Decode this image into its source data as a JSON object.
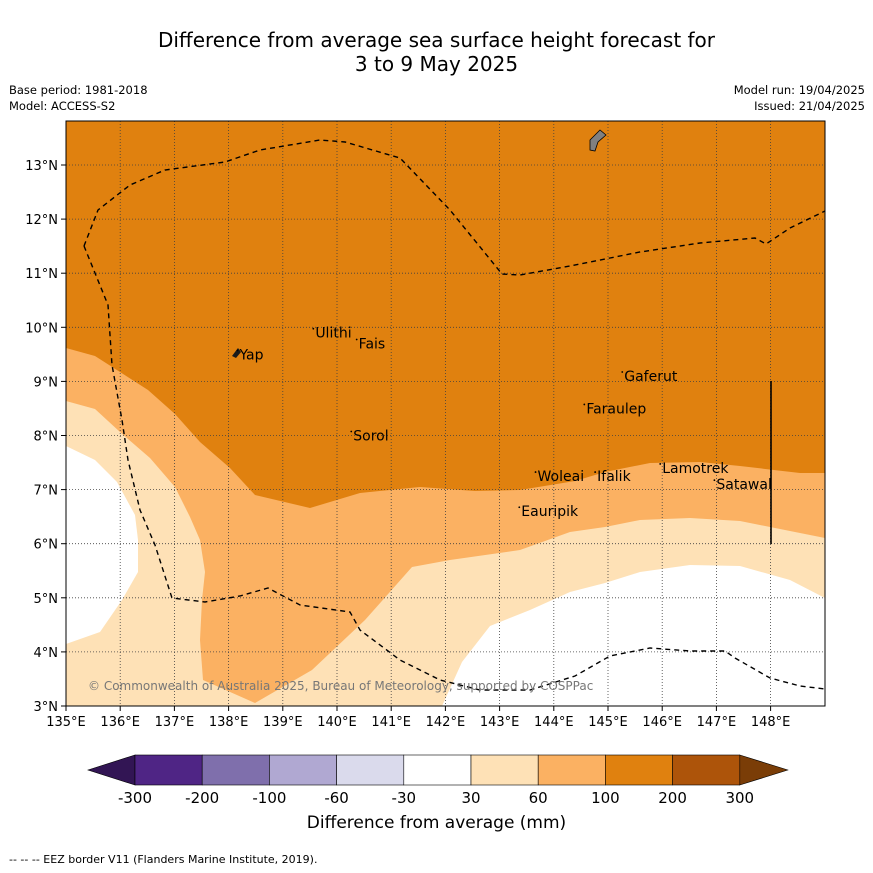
{
  "title": {
    "line1": "Difference from average sea surface height forecast for",
    "line2": "3 to 9 May 2025"
  },
  "meta": {
    "base_period": "Base period: 1981-2018",
    "model": "Model: ACCESS-S2",
    "model_run": "Model run: 19/04/2025",
    "issued": "Issued: 21/04/2025"
  },
  "map": {
    "lon_range": [
      135,
      149
    ],
    "lat_range": [
      3,
      13.8
    ],
    "lon_ticks": [
      "135°E",
      "136°E",
      "137°E",
      "138°E",
      "139°E",
      "140°E",
      "141°E",
      "142°E",
      "143°E",
      "144°E",
      "145°E",
      "146°E",
      "147°E",
      "148°E"
    ],
    "lat_ticks": [
      "3°N",
      "4°N",
      "5°N",
      "6°N",
      "7°N",
      "8°N",
      "9°N",
      "10°N",
      "11°N",
      "12°N",
      "13°N"
    ],
    "copyright": "© Commonwealth of Australia 2025, Bureau of Meteorology, supported by COSPPac",
    "places": [
      {
        "name": "Yap",
        "lon": 138.2,
        "lat": 9.5
      },
      {
        "name": "Ulithi",
        "lon": 139.6,
        "lat": 9.9
      },
      {
        "name": "Fais",
        "lon": 140.4,
        "lat": 9.7
      },
      {
        "name": "Sorol",
        "lon": 140.3,
        "lat": 8.0
      },
      {
        "name": "Gaferut",
        "lon": 145.3,
        "lat": 9.1
      },
      {
        "name": "Faraulep",
        "lon": 144.6,
        "lat": 8.5
      },
      {
        "name": "Woleai",
        "lon": 143.7,
        "lat": 7.25
      },
      {
        "name": "Ifalik",
        "lon": 144.8,
        "lat": 7.25
      },
      {
        "name": "Lamotrek",
        "lon": 146.0,
        "lat": 7.4
      },
      {
        "name": "Satawal",
        "lon": 147.0,
        "lat": 7.1
      },
      {
        "name": "Eauripik",
        "lon": 143.4,
        "lat": 6.6
      }
    ]
  },
  "colorbar": {
    "labels": [
      "-300",
      "-200",
      "-100",
      "-60",
      "-30",
      "30",
      "60",
      "100",
      "200",
      "300"
    ],
    "colors": [
      "#321554",
      "#4f2585",
      "#7f6fac",
      "#b0a8d2",
      "#dadaec",
      "#ffffff",
      "#fee1b6",
      "#fbb162",
      "#e0810f",
      "#ad540a",
      "#7a3d07"
    ],
    "title": "Difference from average (mm)"
  },
  "footer": "--  --  -- EEZ border V11 (Flanders Marine Institute, 2019)."
}
